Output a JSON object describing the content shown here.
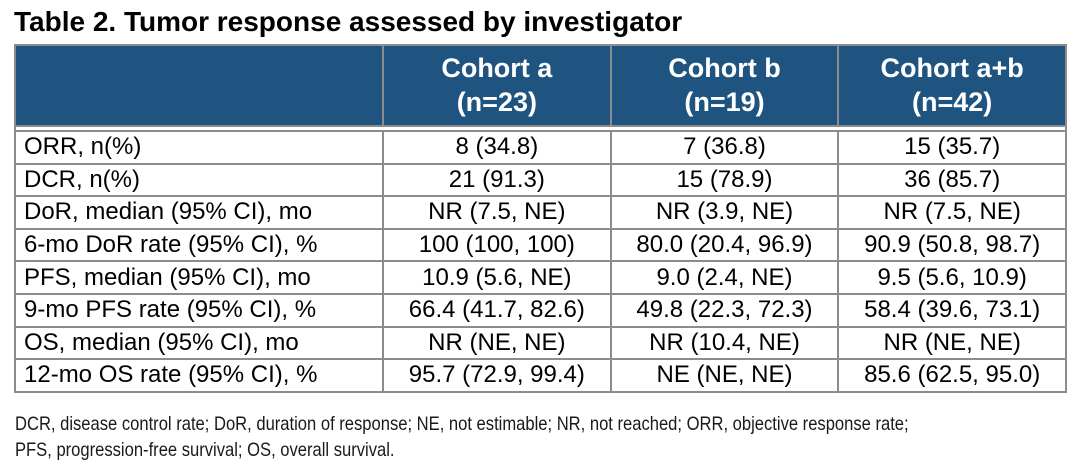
{
  "title": "Table 2. Tumor response assessed by investigator",
  "table": {
    "columns": [
      {
        "label": "Cohort a",
        "n": "(n=23)"
      },
      {
        "label": "Cohort b",
        "n": "(n=19)"
      },
      {
        "label": "Cohort a+b",
        "n": "(n=42)"
      }
    ],
    "rows": [
      {
        "label": "ORR, n(%)",
        "values": [
          "8 (34.8)",
          "7 (36.8)",
          "15 (35.7)"
        ]
      },
      {
        "label": "DCR, n(%)",
        "values": [
          "21 (91.3)",
          "15 (78.9)",
          "36 (85.7)"
        ]
      },
      {
        "label": "DoR, median (95% CI), mo",
        "values": [
          "NR (7.5, NE)",
          "NR (3.9, NE)",
          "NR (7.5, NE)"
        ]
      },
      {
        "label": "6-mo DoR rate (95% CI), %",
        "values": [
          "100 (100, 100)",
          "80.0 (20.4, 96.9)",
          "90.9 (50.8, 98.7)"
        ]
      },
      {
        "label": "PFS, median (95% CI), mo",
        "values": [
          "10.9 (5.6, NE)",
          "9.0 (2.4, NE)",
          "9.5 (5.6, 10.9)"
        ]
      },
      {
        "label": "9-mo PFS rate (95% CI), %",
        "values": [
          "66.4 (41.7, 82.6)",
          "49.8 (22.3, 72.3)",
          "58.4 (39.6, 73.1)"
        ]
      },
      {
        "label": "OS, median (95% CI), mo",
        "values": [
          "NR (NE, NE)",
          "NR (10.4, NE)",
          "NR (NE, NE)"
        ]
      },
      {
        "label": "12-mo OS rate (95% CI), %",
        "values": [
          "95.7 (72.9, 99.4)",
          "NE (NE, NE)",
          "85.6 (62.5, 95.0)"
        ]
      }
    ]
  },
  "footnote": {
    "line1": "DCR, disease control rate; DoR, duration of response; NE, not estimable; NR, not reached; ORR, objective response rate;",
    "line2": "PFS, progression-free survival; OS, overall survival."
  },
  "colors": {
    "header_bg": "#1F5480",
    "header_text": "#FFFFFF",
    "gridline": "#8C8C8C",
    "body_text": "#000000",
    "background": "#FFFFFF"
  }
}
